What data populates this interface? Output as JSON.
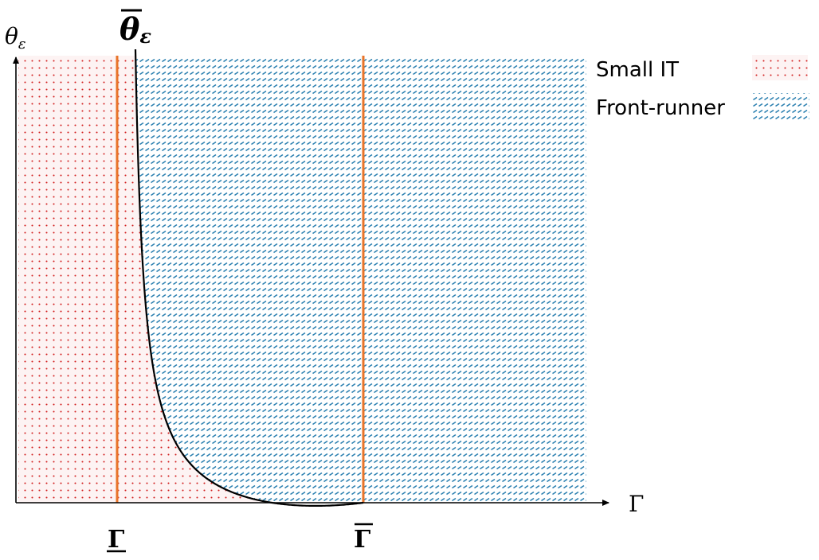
{
  "axes": {
    "x_label": "Γ",
    "y_label_base": "θ",
    "y_label_sub": "ε"
  },
  "curve": {
    "label_base": "θ",
    "label_sub": "ε"
  },
  "markers": {
    "lower_gamma": "Γ",
    "upper_gamma": "Γ"
  },
  "legend": {
    "small_it": "Small IT",
    "front_runner": "Front-runner"
  },
  "colors": {
    "small_it_dots": "#d21f1f",
    "small_it_background": "#fdf3f3",
    "front_runner_dashes": "#2a7fb0",
    "boundary_lines": "#e8742a",
    "curve": "#000000",
    "axes": "#000000"
  }
}
